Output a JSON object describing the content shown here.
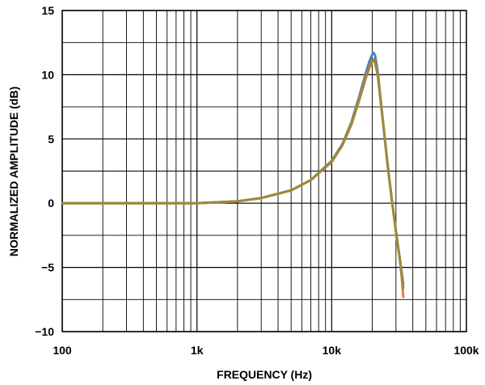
{
  "chart_data": {
    "type": "line",
    "xlabel": "FREQUENCY (Hz)",
    "ylabel": "NORMALIZED AMPLITUDE (dB)",
    "x_scale": "log",
    "xlim": [
      100,
      100000
    ],
    "ylim": [
      -10,
      15
    ],
    "x_ticks": [
      "100",
      "1k",
      "10k",
      "100k"
    ],
    "y_ticks": [
      "15",
      "10",
      "5",
      "0",
      "−5",
      "−10"
    ],
    "grid": true,
    "series": [
      {
        "color": "#4f81bd",
        "x": [
          100,
          1000,
          2000,
          3000,
          5000,
          7000,
          10000,
          12000,
          14000,
          16000,
          18000,
          19000,
          20000,
          20500,
          21000,
          22000,
          24000,
          26000,
          28000,
          30000,
          32000,
          33000,
          34000
        ],
        "y": [
          0.0,
          0.0,
          0.15,
          0.4,
          1.0,
          1.8,
          3.3,
          4.6,
          6.3,
          8.3,
          10.2,
          11.0,
          11.6,
          11.7,
          11.5,
          10.2,
          6.4,
          3.0,
          0.2,
          -2.2,
          -4.3,
          -5.3,
          -6.3
        ]
      },
      {
        "color": "#ed7d31",
        "x": [
          100,
          1000,
          2000,
          3000,
          5000,
          7000,
          10000,
          12000,
          14000,
          16000,
          18000,
          19000,
          20000,
          20500,
          21000,
          22000,
          24000,
          26000,
          28000,
          30000,
          32000,
          33000,
          34000
        ],
        "y": [
          0.0,
          0.0,
          0.15,
          0.4,
          1.0,
          1.8,
          3.2,
          4.5,
          6.1,
          8.0,
          9.8,
          10.5,
          11.0,
          11.1,
          10.9,
          9.9,
          6.4,
          3.0,
          0.2,
          -2.2,
          -4.3,
          -5.6,
          -7.3
        ]
      },
      {
        "color": "#9c8a3c",
        "x": [
          100,
          1000,
          2000,
          3000,
          5000,
          7000,
          10000,
          12000,
          14000,
          16000,
          18000,
          19000,
          20000,
          20500,
          21000,
          22000,
          24000,
          26000,
          28000,
          30000,
          32000,
          33000,
          34000
        ],
        "y": [
          0.0,
          0.0,
          0.15,
          0.4,
          1.0,
          1.8,
          3.25,
          4.55,
          6.2,
          8.1,
          9.9,
          10.6,
          11.1,
          11.2,
          11.0,
          10.0,
          6.4,
          3.0,
          0.2,
          -2.2,
          -4.3,
          -5.4,
          -6.6
        ]
      }
    ]
  }
}
